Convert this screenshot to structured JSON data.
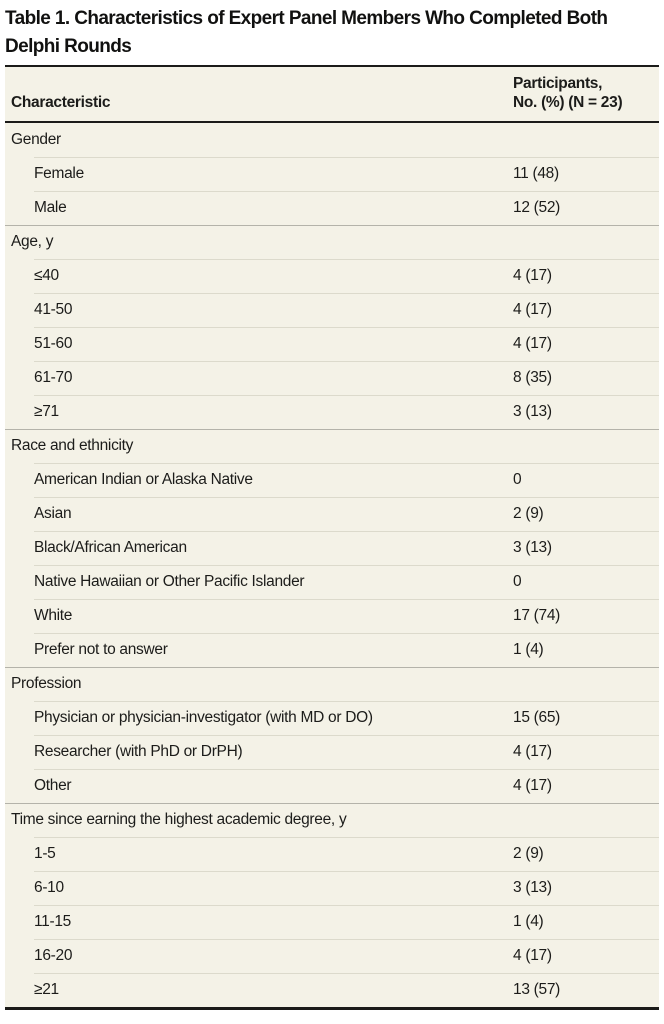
{
  "title_lines": [
    "Table 1. Characteristics of Expert Panel Members Who Completed Both",
    "Delphi Rounds"
  ],
  "table": {
    "columns": {
      "characteristic": "Characteristic",
      "participants_line1": "Participants,",
      "participants_line2": "No. (%) (N = 23)"
    },
    "rows": [
      {
        "type": "section",
        "label": "Gender",
        "value": ""
      },
      {
        "type": "item",
        "label": "Female",
        "value": "11 (48)"
      },
      {
        "type": "item",
        "label": "Male",
        "value": "12 (52)"
      },
      {
        "type": "section",
        "label": "Age, y",
        "value": ""
      },
      {
        "type": "item",
        "label": "≤40",
        "value": "4 (17)"
      },
      {
        "type": "item",
        "label": "41-50",
        "value": "4 (17)"
      },
      {
        "type": "item",
        "label": "51-60",
        "value": "4 (17)"
      },
      {
        "type": "item",
        "label": "61-70",
        "value": "8 (35)"
      },
      {
        "type": "item",
        "label": "≥71",
        "value": "3 (13)"
      },
      {
        "type": "section",
        "label": "Race and ethnicity",
        "value": ""
      },
      {
        "type": "item",
        "label": "American Indian or Alaska Native",
        "value": "0"
      },
      {
        "type": "item",
        "label": "Asian",
        "value": "2 (9)"
      },
      {
        "type": "item",
        "label": "Black/African American",
        "value": "3 (13)"
      },
      {
        "type": "item",
        "label": "Native Hawaiian or Other Pacific Islander",
        "value": "0"
      },
      {
        "type": "item",
        "label": "White",
        "value": "17 (74)"
      },
      {
        "type": "item",
        "label": "Prefer not to answer",
        "value": "1 (4)"
      },
      {
        "type": "section",
        "label": "Profession",
        "value": ""
      },
      {
        "type": "item",
        "label": "Physician or physician-investigator (with MD or DO)",
        "value": "15 (65)"
      },
      {
        "type": "item",
        "label": "Researcher (with PhD or DrPH)",
        "value": "4 (17)"
      },
      {
        "type": "item",
        "label": "Other",
        "value": "4 (17)"
      },
      {
        "type": "section",
        "label": "Time since earning the highest academic degree, y",
        "value": ""
      },
      {
        "type": "item",
        "label": "1-5",
        "value": "2 (9)"
      },
      {
        "type": "item",
        "label": "6-10",
        "value": "3 (13)"
      },
      {
        "type": "item",
        "label": "11-15",
        "value": "1 (4)"
      },
      {
        "type": "item",
        "label": "16-20",
        "value": "4 (17)"
      },
      {
        "type": "item",
        "label": "≥21",
        "value": "13 (57)"
      }
    ]
  },
  "colors": {
    "table_background": "#f4f2e7",
    "item_divider": "#dcdacc",
    "section_divider": "#b4b3aa",
    "border_black": "#1b1b19",
    "text": "#1c1c1a"
  }
}
